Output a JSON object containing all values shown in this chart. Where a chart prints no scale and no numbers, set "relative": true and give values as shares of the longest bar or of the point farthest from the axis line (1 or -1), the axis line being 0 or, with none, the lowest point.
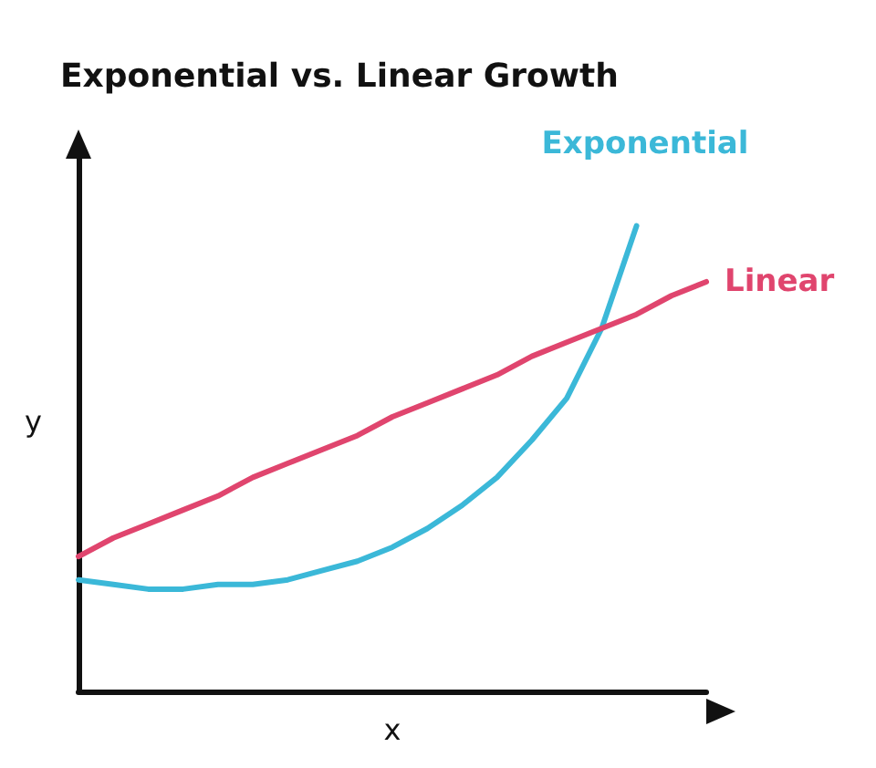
{
  "chart_data": {
    "type": "line",
    "title": "Exponential vs. Linear Growth",
    "xlabel": "x",
    "ylabel": "y",
    "relative": true,
    "legend": false,
    "grid": false,
    "marker": "none",
    "line_style": "solid",
    "categories": [
      null,
      null,
      null,
      null,
      null,
      null,
      null,
      null,
      null,
      null,
      null,
      null,
      null,
      null,
      null,
      null,
      null,
      null,
      null
    ],
    "series": [
      {
        "name": "Exponential",
        "color": "#3bb8d8",
        "values": [
          0.24,
          0.23,
          0.22,
          0.22,
          0.23,
          0.23,
          0.24,
          0.26,
          0.28,
          0.31,
          0.35,
          0.4,
          0.46,
          0.54,
          0.63,
          0.78,
          1,
          null,
          null
        ]
      },
      {
        "name": "Linear",
        "color": "#e0456e",
        "values": [
          0.29,
          0.33,
          0.36,
          0.39,
          0.42,
          0.46,
          0.49,
          0.52,
          0.55,
          0.59,
          0.62,
          0.65,
          0.68,
          0.72,
          0.75,
          0.78,
          0.81,
          0.85,
          0.88
        ]
      }
    ]
  }
}
